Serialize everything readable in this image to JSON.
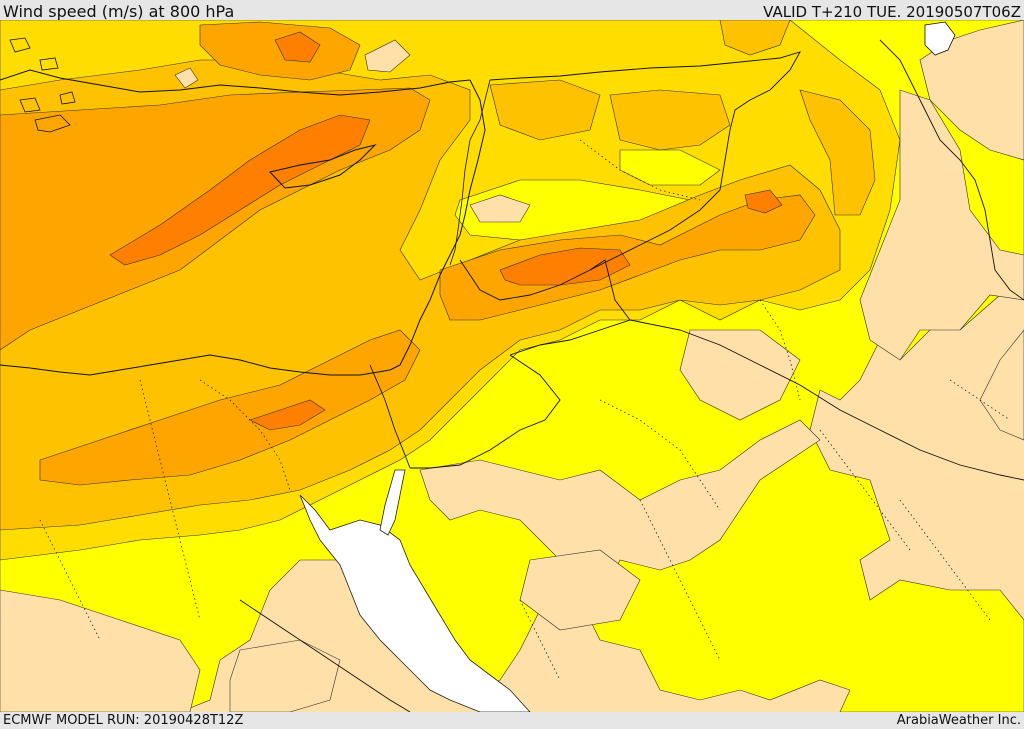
{
  "header": {
    "title": "Wind speed (m/s) at 800 hPa",
    "valid": "VALID T+210 TUE. 20190507T06Z"
  },
  "footer": {
    "model_run": "ECMWF MODEL RUN: 20190428T12Z",
    "credit": "ArabiaWeather Inc."
  },
  "colors": {
    "light": "#ffe0a8",
    "yellow": "#ffff00",
    "gold": "#ffdd00",
    "amber": "#ffc200",
    "orange": "#ffa500",
    "dark_orange": "#ff8000",
    "sea": "#ffffff",
    "frame": "#e6e6e6"
  }
}
